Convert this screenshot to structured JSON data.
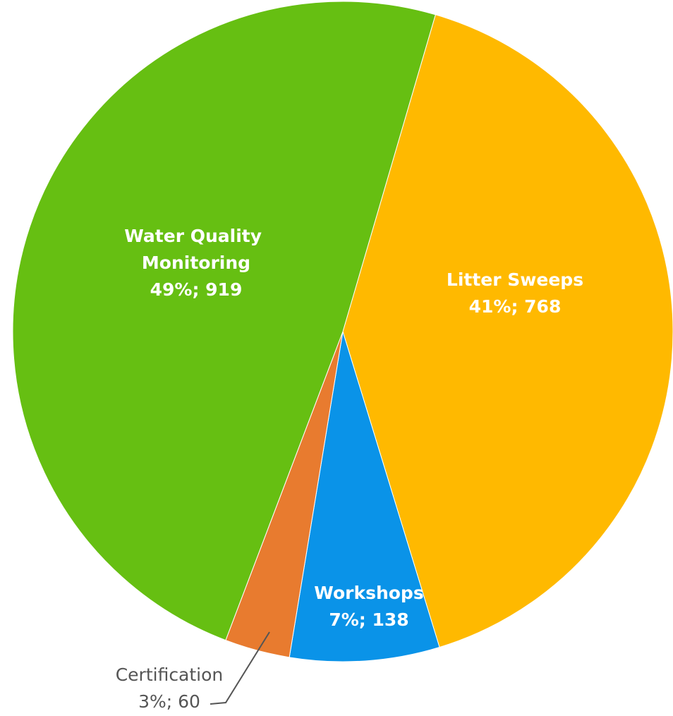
{
  "chart_data": {
    "type": "pie",
    "categories": [
      "Litter Sweeps",
      "Workshops",
      "Certification",
      "Water Quality Monitoring"
    ],
    "values": [
      768,
      138,
      60,
      919
    ],
    "value_labels": [
      "41%; 768",
      "7%; 138",
      "3%; 60",
      "49%; 919"
    ],
    "colors": [
      "#ffb900",
      "#0a93e8",
      "#e87b2f",
      "#66bf12"
    ]
  }
}
